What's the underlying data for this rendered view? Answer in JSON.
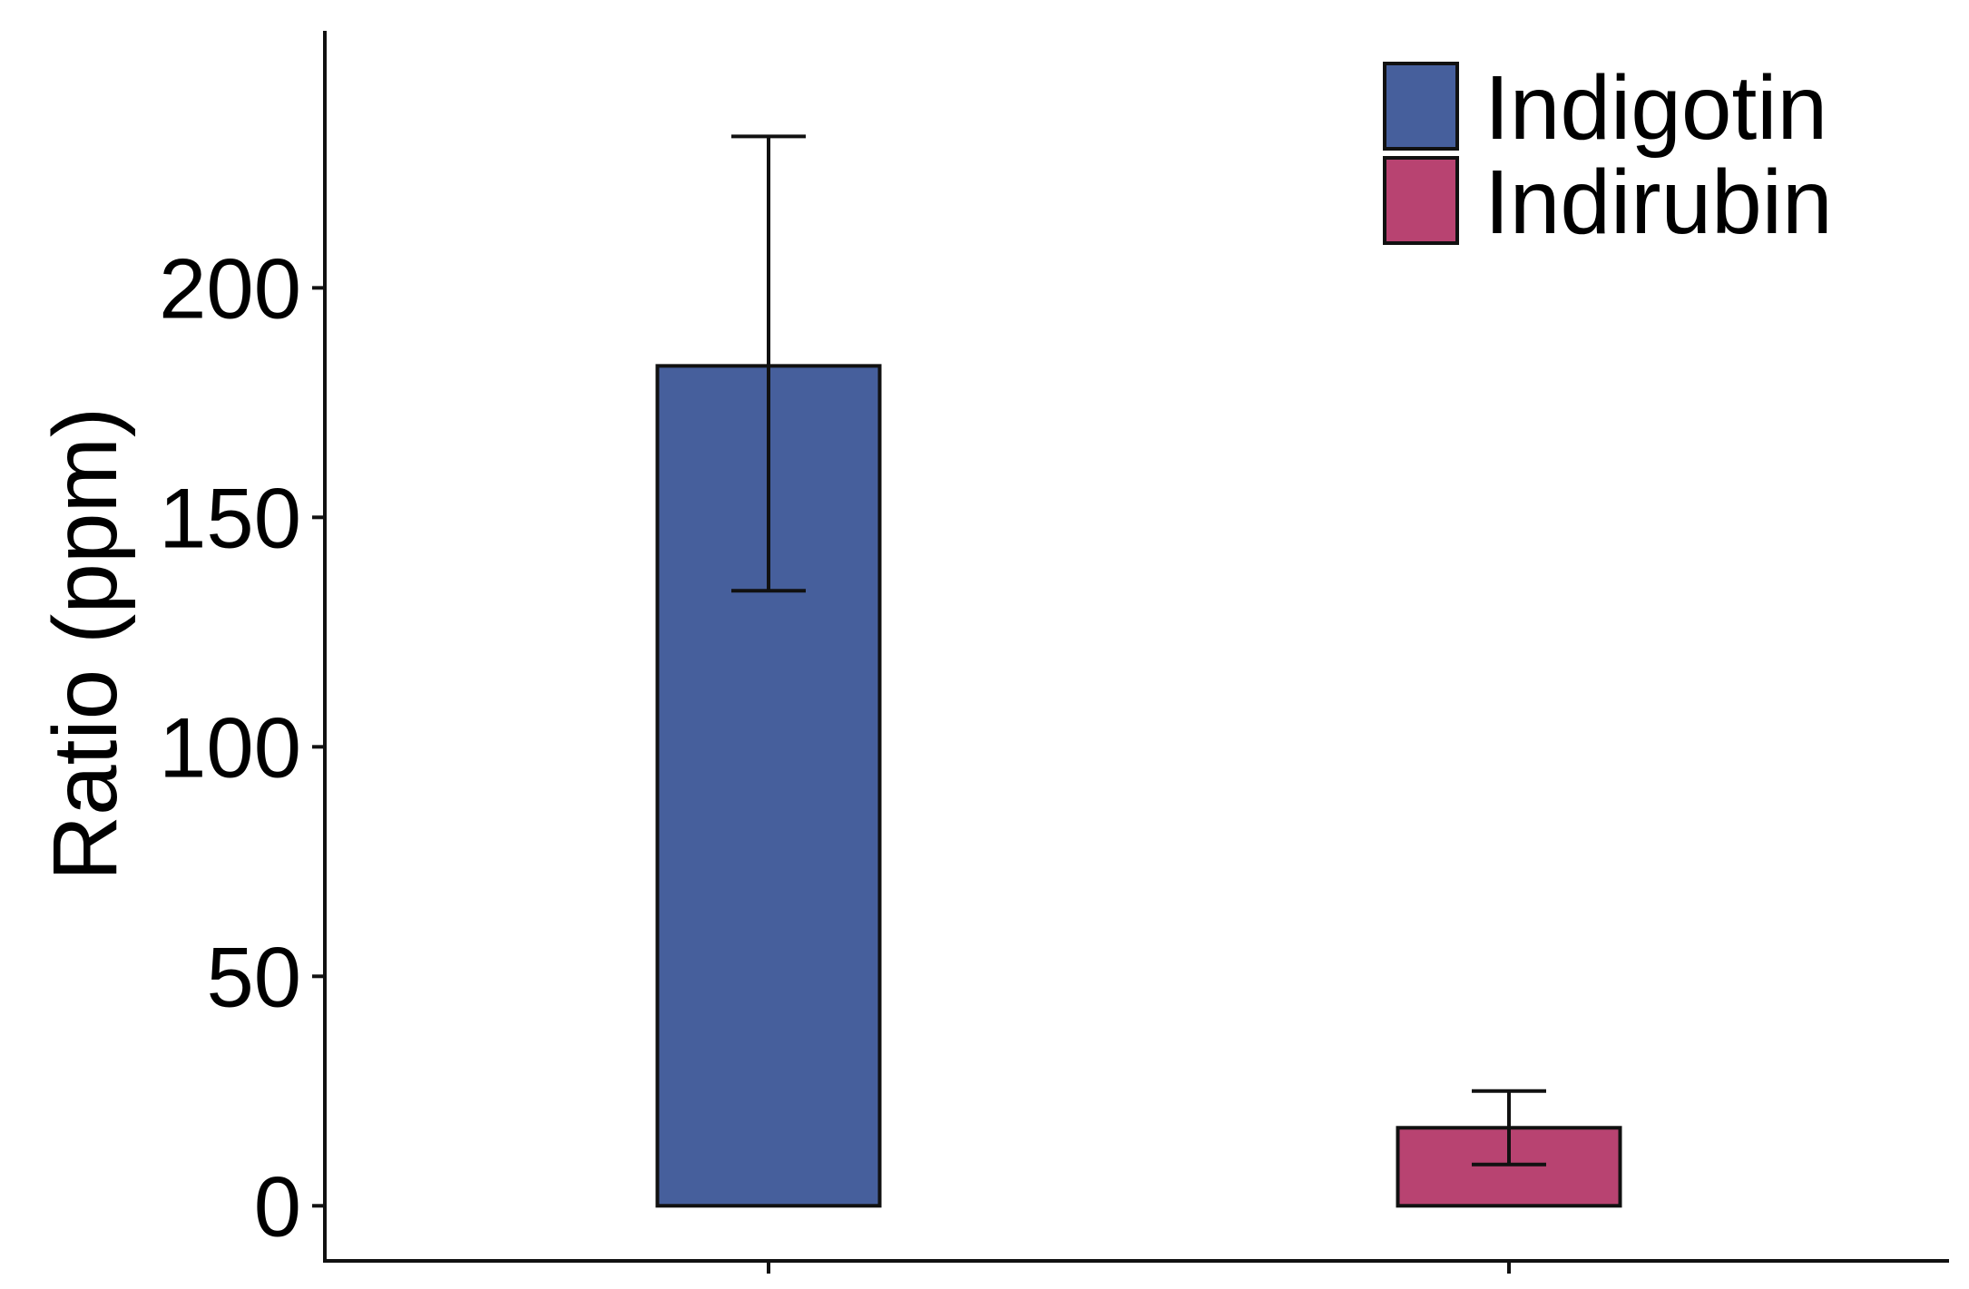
{
  "chart_data": {
    "type": "bar",
    "title": "",
    "xlabel": "",
    "ylabel": "Ratio (ppm)",
    "ylim": [
      -12,
      256
    ],
    "yticks": [
      0,
      50,
      100,
      150,
      200
    ],
    "grid": false,
    "legend_position": "top-right",
    "categories": [
      "Indigotin",
      "Indirubin"
    ],
    "series": [
      {
        "name": "Indigotin",
        "value": 183,
        "error_low": 134,
        "error_high": 233,
        "color": "#465f9c"
      },
      {
        "name": "Indirubin",
        "value": 17,
        "error_low": 9,
        "error_high": 25,
        "color": "#b84371"
      }
    ]
  }
}
